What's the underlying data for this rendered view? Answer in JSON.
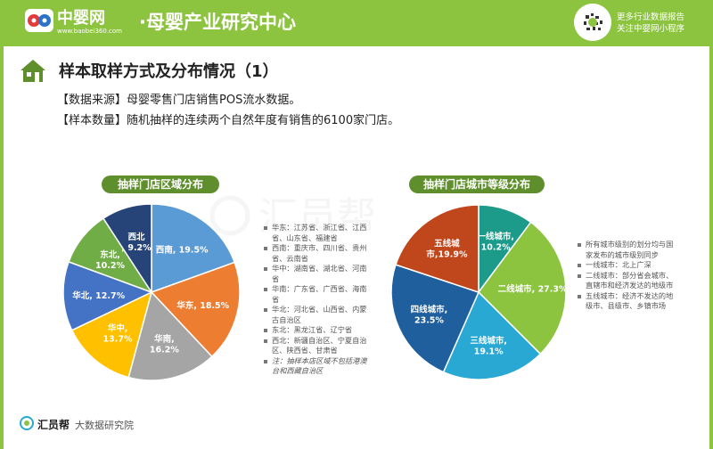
{
  "header": {
    "brand": "中婴网",
    "brand_url": "www.baobei360.com",
    "title": "·母婴产业研究中心",
    "right_line1": "更多行业数据报告",
    "right_line2": "关注中婴网小程序"
  },
  "section": {
    "title": "样本取样方式及分布情况（1）",
    "source_tag": "【数据来源】",
    "source_text": "母婴零售门店销售POS流水数据。",
    "count_tag": "【样本数量】",
    "count_text": "随机抽样的连续两个自然年度有销售的6100家门店。"
  },
  "chart_data": [
    {
      "type": "pie",
      "title": "抽样门店区域分布",
      "categories": [
        "西南",
        "华东",
        "华南",
        "华中",
        "华北",
        "东北",
        "西北"
      ],
      "values": [
        19.5,
        18.5,
        16.2,
        13.7,
        12.7,
        10.2,
        9.2
      ],
      "labels": [
        "西南, 19.5%",
        "华东, 18.5%",
        "华南,\n16.2%",
        "华中,\n13.7%",
        "华北, 12.7%",
        "东北,\n10.2%",
        "西北\n, 9.2%"
      ],
      "colors": [
        "#5b9bd5",
        "#ed7d31",
        "#a5a5a5",
        "#ffc000",
        "#4472c4",
        "#70ad47",
        "#264478"
      ],
      "legend": [
        "华东：江苏省、浙江省、江西省、山东省、福建省",
        "西南：重庆市、四川省、贵州省、云南省",
        "华中：湖南省、湖北省、河南省",
        "华南：广东省、广西省、海南省",
        "华北：河北省、山西省、内蒙古自治区",
        "东北：黑龙江省、辽宁省",
        "西北：新疆自治区、宁夏自治区、陕西省、甘肃省"
      ],
      "note": "注：抽样本店区域不包括港澳台和西藏自治区"
    },
    {
      "type": "pie",
      "title": "抽样门店城市等级分布",
      "categories": [
        "一线城市",
        "二线城市",
        "三线城市",
        "四线城市",
        "五线城市"
      ],
      "values": [
        10.2,
        27.3,
        19.1,
        23.5,
        19.9
      ],
      "labels": [
        "一线城市,\n10.2%",
        "二线城市, 27.3%",
        "三线城市,\n19.1%",
        "四线城市,\n23.5%",
        "五线城\n市,19.9%"
      ],
      "colors": [
        "#1c9b8a",
        "#8cc33f",
        "#2aa8d4",
        "#1f5f9e",
        "#c0461c"
      ],
      "legend": [
        "所有城市级别的划分均与国家发布的城市级别同步",
        "一线城市：北上广深",
        "二线城市：部分省会城市、直辖市和经济发达的地级市",
        "五线城市：经济不发达的地级市、县级市、乡镇市场"
      ]
    }
  ],
  "footer": {
    "brand": "汇员帮",
    "sub": "大数据研究院"
  },
  "watermark": "汇员帮"
}
